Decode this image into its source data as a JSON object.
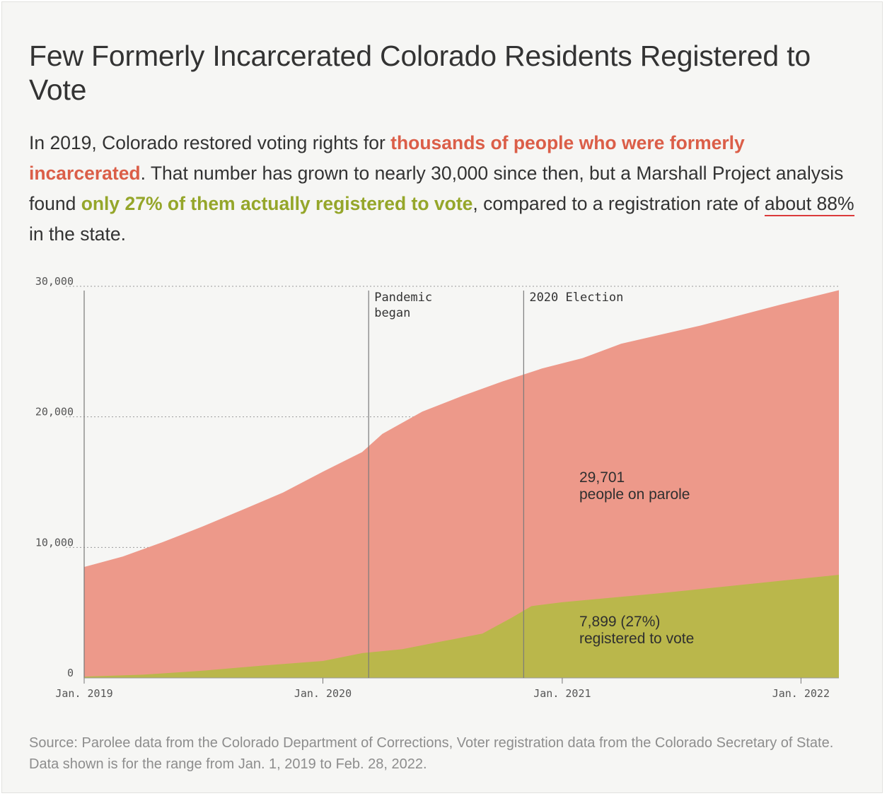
{
  "header": {
    "title": "Few Formerly Incarcerated Colorado Residents Registered to Vote",
    "dek_parts": [
      "In 2019, Colorado restored voting rights for ",
      "thousands of people who were formerly incarcerated",
      ". That number has grown to nearly 30,000 since then, but a Marshall Project analysis found ",
      "only 27% of them actually registered to vote",
      ", compared to a registration rate of ",
      "about 88%",
      " in the state."
    ]
  },
  "colors": {
    "parole": "#ed998a",
    "registered": "#bab74b",
    "highlight_red": "#db5e48",
    "highlight_green": "#95a62a"
  },
  "chart_data": {
    "type": "area",
    "stacking": "overlapping",
    "y_ticks": [
      "30,000",
      "20,000",
      "10,000",
      "0"
    ],
    "x_ticks": [
      {
        "label": "Jan. 2019",
        "date": "2019-01-01"
      },
      {
        "label": "Jan. 2020",
        "date": "2020-01-01"
      },
      {
        "label": "Jan. 2021",
        "date": "2021-01-01"
      },
      {
        "label": "Jan. 2022",
        "date": "2022-01-01"
      }
    ],
    "ylim": [
      0,
      30000
    ],
    "xlim": [
      "2019-01-01",
      "2022-02-28"
    ],
    "grid": "horizontal dotted",
    "annotations": [
      {
        "date": "2020-03-11",
        "label_lines": [
          "Pandemic",
          "began"
        ]
      },
      {
        "date": "2020-11-03",
        "label_lines": [
          "2020 Election"
        ]
      }
    ],
    "series": [
      {
        "key": "parole",
        "points": [
          [
            "2019-01-01",
            8500
          ],
          [
            "2019-03-01",
            9300
          ],
          [
            "2019-05-01",
            10400
          ],
          [
            "2019-07-01",
            11600
          ],
          [
            "2019-09-01",
            12900
          ],
          [
            "2019-11-01",
            14200
          ],
          [
            "2020-01-01",
            15800
          ],
          [
            "2020-03-01",
            17300
          ],
          [
            "2020-04-01",
            18700
          ],
          [
            "2020-06-01",
            20400
          ],
          [
            "2020-08-01",
            21600
          ],
          [
            "2020-10-01",
            22700
          ],
          [
            "2020-12-01",
            23700
          ],
          [
            "2021-02-01",
            24500
          ],
          [
            "2021-04-01",
            25600
          ],
          [
            "2021-06-01",
            26300
          ],
          [
            "2021-08-01",
            27000
          ],
          [
            "2021-10-01",
            27800
          ],
          [
            "2021-12-01",
            28600
          ],
          [
            "2022-02-28",
            29701
          ]
        ],
        "label_lines": [
          "29,701",
          "people on parole"
        ]
      },
      {
        "key": "registered",
        "points": [
          [
            "2019-01-01",
            100
          ],
          [
            "2019-04-01",
            250
          ],
          [
            "2019-07-01",
            550
          ],
          [
            "2019-10-01",
            950
          ],
          [
            "2020-01-01",
            1300
          ],
          [
            "2020-03-01",
            1900
          ],
          [
            "2020-05-01",
            2200
          ],
          [
            "2020-07-01",
            2800
          ],
          [
            "2020-09-01",
            3400
          ],
          [
            "2020-10-15",
            4600
          ],
          [
            "2020-11-15",
            5500
          ],
          [
            "2021-01-01",
            5800
          ],
          [
            "2021-06-01",
            6500
          ],
          [
            "2022-02-28",
            7899
          ]
        ],
        "label_lines": [
          "7,899 (27%)",
          "registered to vote"
        ]
      }
    ]
  },
  "footer": {
    "source": "Source: Parolee data from the Colorado Department of Corrections, Voter registration data from the Colorado Secretary of State. Data shown is for the range from Jan. 1, 2019 to Feb. 28, 2022."
  }
}
